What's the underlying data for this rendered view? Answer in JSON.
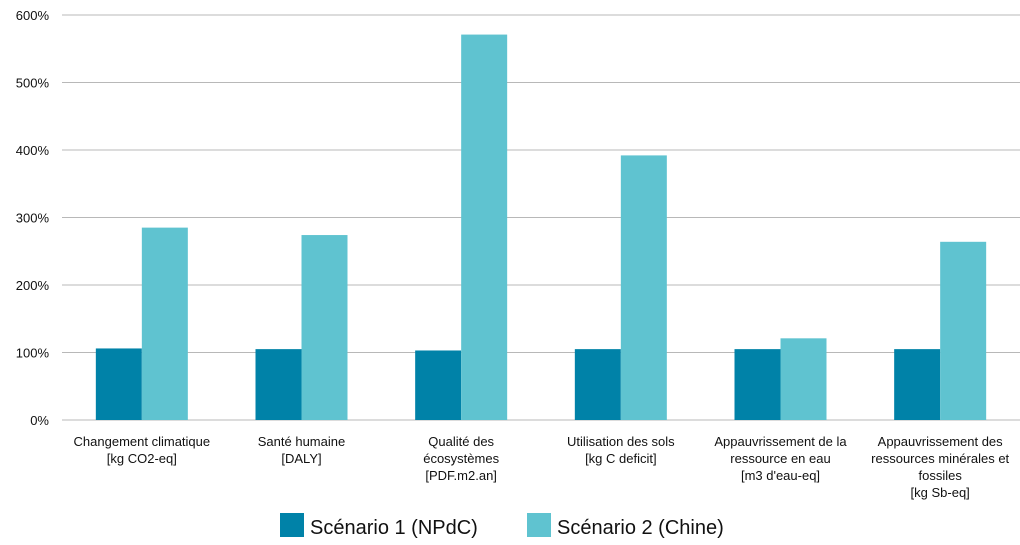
{
  "chart_data": {
    "type": "bar",
    "title": "",
    "xlabel": "",
    "ylabel": "",
    "ylim": [
      0,
      600
    ],
    "y_ticks": [
      "0%",
      "100%",
      "200%",
      "300%",
      "400%",
      "500%",
      "600%"
    ],
    "grid": true,
    "legend_position": "bottom",
    "categories": [
      [
        "Changement climatique",
        "[kg CO2-eq]"
      ],
      [
        "Santé humaine",
        "[DALY]"
      ],
      [
        "Qualité des",
        "écosystèmes",
        "[PDF.m2.an]"
      ],
      [
        "Utilisation des sols",
        "[kg C deficit]"
      ],
      [
        "Appauvrissement de la",
        "ressource en eau",
        "[m3 d'eau-eq]"
      ],
      [
        "Appauvrissement des",
        "ressources minérales et",
        "fossiles",
        "[kg Sb-eq]"
      ]
    ],
    "series": [
      {
        "name": "Scénario 1 (NPdC)",
        "color": "#0082a8",
        "values": [
          106,
          105,
          103,
          105,
          105,
          105
        ]
      },
      {
        "name": "Scénario 2 (Chine)",
        "color": "#5fc3d0",
        "values": [
          285,
          274,
          571,
          392,
          121,
          264
        ]
      }
    ]
  }
}
